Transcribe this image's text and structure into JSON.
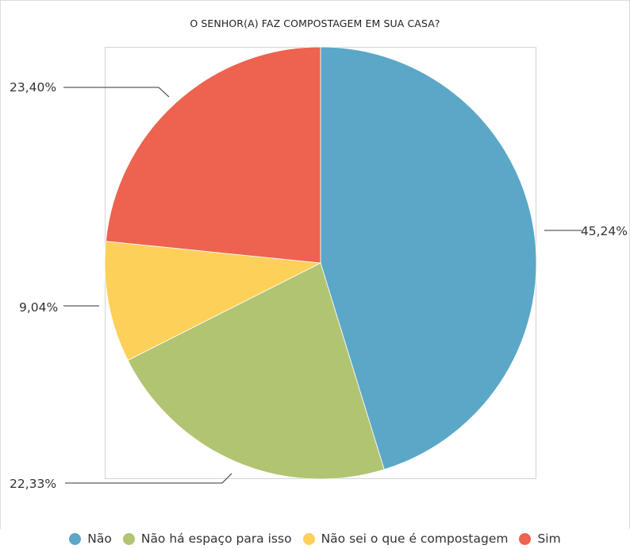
{
  "chart_data": {
    "type": "pie",
    "title": "O SENHOR(A) FAZ COMPOSTAGEM EM SUA CASA?",
    "series": [
      {
        "name": "Não",
        "value": 45.24,
        "label": "45,24%",
        "color": "#5ba7c7"
      },
      {
        "name": "Não há espaço para isso",
        "value": 22.33,
        "label": "22,33%",
        "color": "#b1c472"
      },
      {
        "name": "Não sei o que é compostagem",
        "value": 9.04,
        "label": "9,04%",
        "color": "#fdd05a"
      },
      {
        "name": "Sim",
        "value": 23.4,
        "label": "23,40%",
        "color": "#ed634f"
      }
    ],
    "start_angle": "12 o'clock",
    "direction": "clockwise",
    "legend_position": "bottom"
  }
}
